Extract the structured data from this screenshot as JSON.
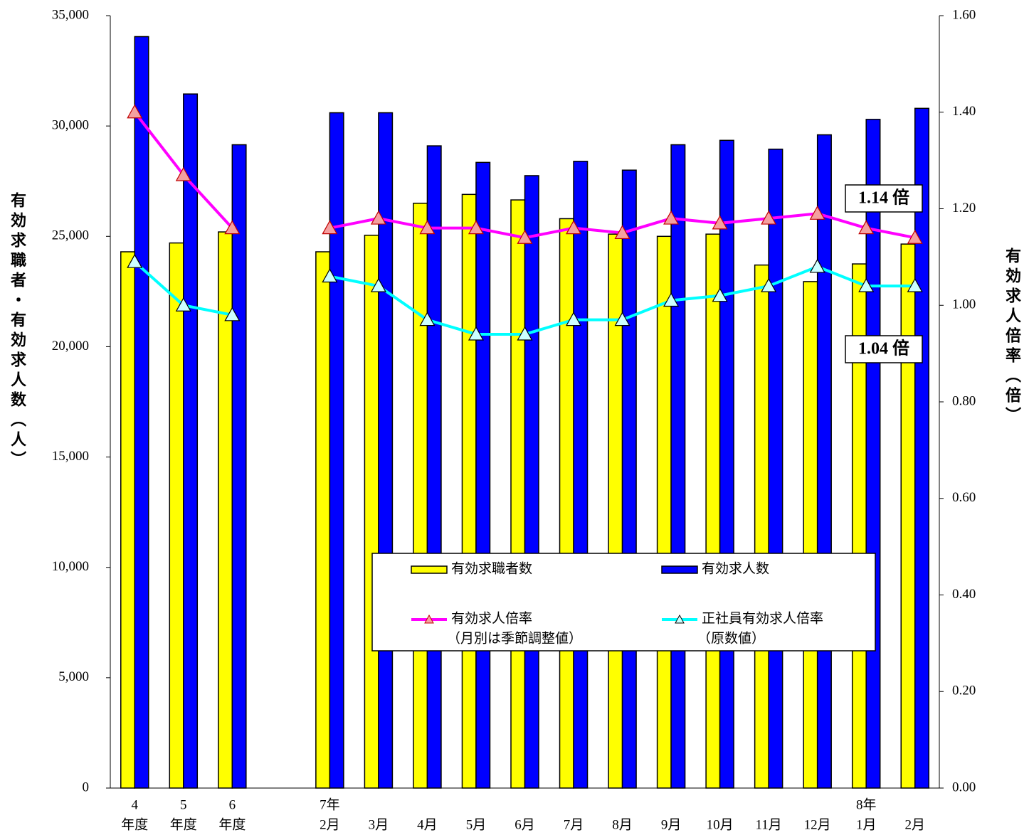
{
  "chart_data": {
    "type": "bar",
    "y_label": "有効求職者・有効求人数（人）",
    "y2_label": "有効求人倍率（倍）",
    "categories": [
      [
        "4",
        "年度"
      ],
      [
        "5",
        "年度"
      ],
      [
        "6",
        "年度"
      ],
      null,
      [
        "7年",
        "2月"
      ],
      [
        "3月"
      ],
      [
        "4月"
      ],
      [
        "5月"
      ],
      [
        "6月"
      ],
      [
        "7月"
      ],
      [
        "8月"
      ],
      [
        "9月"
      ],
      [
        "10月"
      ],
      [
        "11月"
      ],
      [
        "12月"
      ],
      [
        "8年",
        "1月"
      ],
      [
        "2月"
      ]
    ],
    "ylim": [
      0,
      35000
    ],
    "yticks": [
      0,
      {
        "value": 5000,
        "label": "5,000"
      },
      {
        "value": 10000,
        "label": "10,000"
      },
      {
        "value": 15000,
        "label": "15,000"
      },
      {
        "value": 20000,
        "label": "20,000"
      },
      {
        "value": 25000,
        "label": "25,000"
      },
      {
        "value": 30000,
        "label": "30,000"
      },
      {
        "value": 35000,
        "label": "35,000"
      }
    ],
    "y2lim": [
      0,
      1.6
    ],
    "y2ticks": [
      {
        "value": 0,
        "label": "0.00"
      },
      {
        "value": 0.2,
        "label": "0.20"
      },
      {
        "value": 0.4,
        "label": "0.40"
      },
      {
        "value": 0.6,
        "label": "0.60"
      },
      {
        "value": 0.8,
        "label": "0.80"
      },
      {
        "value": 1.0,
        "label": "1.00"
      },
      {
        "value": 1.2,
        "label": "1.20"
      },
      {
        "value": 1.4,
        "label": "1.40"
      },
      {
        "value": 1.6,
        "label": "1.60"
      }
    ],
    "grid": false,
    "series": [
      {
        "name": "有効求職者数",
        "type": "bar",
        "color": "#ffff00",
        "values": [
          24300,
          24700,
          25200,
          null,
          24300,
          25050,
          26500,
          26900,
          26650,
          25800,
          25100,
          25000,
          25100,
          23700,
          22950,
          23750,
          24650
        ]
      },
      {
        "name": "有効求人数",
        "type": "bar",
        "color": "#0000ff",
        "values": [
          34050,
          31450,
          29150,
          null,
          30600,
          30600,
          29100,
          28350,
          27750,
          28400,
          28000,
          29150,
          29350,
          28950,
          29600,
          30300,
          30800
        ]
      },
      {
        "name": "有効求人倍率",
        "legend_note": "（月別は季節調整値）",
        "type": "line",
        "axis": "y2",
        "color": "#ff00ff",
        "marker_color": "#f4a0a0",
        "marker_edge": "#c00000",
        "values": [
          1.4,
          1.27,
          1.16,
          null,
          1.16,
          1.18,
          1.16,
          1.16,
          1.14,
          1.16,
          1.15,
          1.18,
          1.17,
          1.18,
          1.19,
          1.16,
          1.14
        ]
      },
      {
        "name": "正社員有効求人倍率",
        "legend_note": "（原数値）",
        "type": "line",
        "axis": "y2",
        "color": "#00ffff",
        "marker_color": "#ccffff",
        "marker_edge": "#000000",
        "values": [
          1.09,
          1.0,
          0.98,
          null,
          1.06,
          1.04,
          0.97,
          0.94,
          0.94,
          0.97,
          0.97,
          1.01,
          1.02,
          1.04,
          1.08,
          1.04,
          1.04
        ]
      }
    ],
    "annotations": [
      {
        "text": "1.14 倍"
      },
      {
        "text": "1.04 倍"
      }
    ]
  }
}
